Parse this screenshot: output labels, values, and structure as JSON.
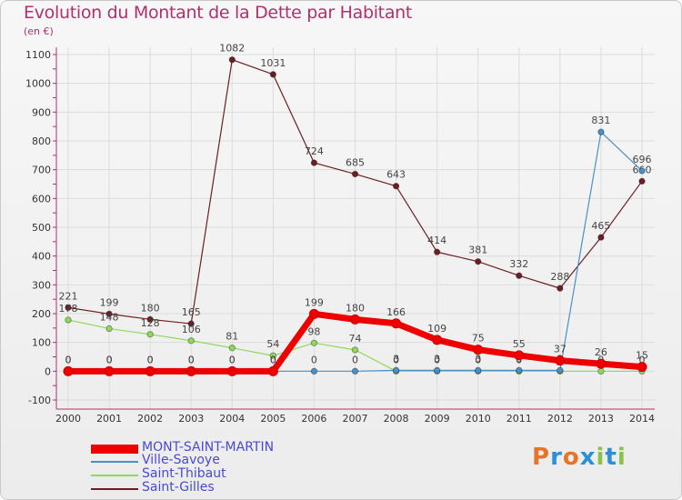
{
  "header": {
    "title": "Evolution du Montant de la Dette par Habitant",
    "unit": "(en €)"
  },
  "logo": {
    "text": "Proxiti",
    "letters": [
      "P",
      "r",
      "o",
      "x",
      "i",
      "t",
      "i"
    ],
    "colors": [
      "#e8742a",
      "#2d8fd6",
      "#e8742a",
      "#2d8fd6",
      "#8bc34a",
      "#2d8fd6",
      "#8bc34a"
    ]
  },
  "chart_data": {
    "type": "line",
    "categories": [
      "2000",
      "2001",
      "2002",
      "2003",
      "2004",
      "2005",
      "2006",
      "2007",
      "2008",
      "2009",
      "2010",
      "2011",
      "2012",
      "2013",
      "2014"
    ],
    "ylim": [
      -100,
      1100
    ],
    "yticks": [
      -100,
      0,
      100,
      200,
      300,
      400,
      500,
      600,
      700,
      800,
      900,
      1000,
      1100
    ],
    "grid": true,
    "legend_position": "bottom-left",
    "series": [
      {
        "name": "Saint-Gilles",
        "color": "#6b1f24",
        "width": 1.2,
        "values": [
          221,
          199,
          180,
          165,
          1082,
          1031,
          724,
          685,
          643,
          414,
          381,
          332,
          288,
          465,
          660
        ],
        "labels": [
          "221",
          "199",
          "180",
          "165",
          "1082",
          "1031",
          "724",
          "685",
          "643",
          "414",
          "381",
          "332",
          "288",
          "465",
          "660"
        ]
      },
      {
        "name": "Saint-Thibaut",
        "color": "#8fd85a",
        "width": 1.2,
        "values": [
          178,
          148,
          128,
          106,
          81,
          54,
          98,
          74,
          0,
          0,
          0,
          0,
          0,
          0,
          0
        ],
        "labels": [
          "178",
          "148",
          "128",
          "106",
          "81",
          "54",
          "98",
          "74",
          "0",
          "0",
          "0",
          "0",
          "0",
          "0",
          "0"
        ]
      },
      {
        "name": "Ville-Savoye",
        "color": "#4a90c8",
        "width": 1.2,
        "values": [
          0,
          0,
          0,
          0,
          0,
          0,
          0,
          0,
          3,
          3,
          3,
          3,
          3,
          831,
          696
        ],
        "labels": [
          "0",
          "0",
          "0",
          "0",
          "0",
          "0",
          "0",
          "0",
          "3",
          "3",
          "3",
          "3",
          "3",
          "831",
          "696"
        ]
      },
      {
        "name": "MONT-SAINT-MARTIN",
        "color": "#ee0000",
        "width": 7,
        "values": [
          0,
          0,
          0,
          0,
          0,
          0,
          199,
          180,
          166,
          109,
          75,
          55,
          37,
          26,
          15
        ],
        "labels": [
          "0",
          "0",
          "0",
          "0",
          "0",
          "0",
          "199",
          "180",
          "166",
          "109",
          "75",
          "55",
          "37",
          "26",
          "15"
        ]
      }
    ],
    "legend_order": [
      "MONT-SAINT-MARTIN",
      "Ville-Savoye",
      "Saint-Thibaut",
      "Saint-Gilles"
    ]
  }
}
